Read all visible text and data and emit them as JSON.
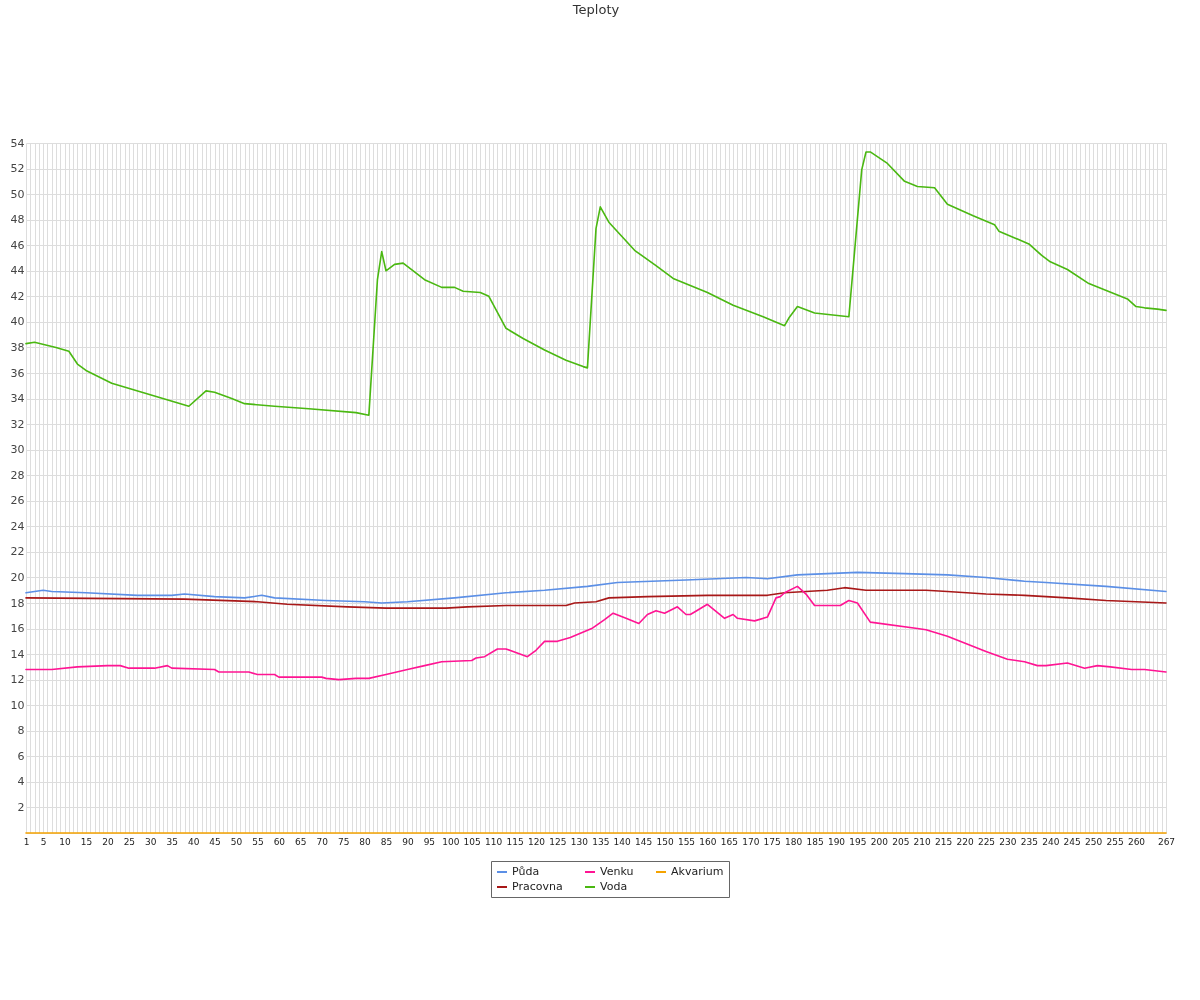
{
  "chart_data": {
    "type": "line",
    "title": "Teploty",
    "xlim": [
      1,
      267
    ],
    "xticks": [
      1,
      {
        "value": 2,
        "label": null
      },
      {
        "value": 3,
        "label": null
      },
      {
        "value": 4,
        "label": null
      },
      5,
      {
        "value": 6,
        "label": null
      },
      {
        "value": 7,
        "label": null
      },
      {
        "value": 8,
        "label": null
      },
      {
        "value": 9,
        "label": null
      },
      10,
      {
        "value": 11,
        "label": null
      },
      {
        "value": 12,
        "label": null
      },
      {
        "value": 13,
        "label": null
      },
      {
        "value": 14,
        "label": null
      },
      15,
      {
        "value": 16,
        "label": null
      },
      {
        "value": 17,
        "label": null
      },
      {
        "value": 18,
        "label": null
      },
      {
        "value": 19,
        "label": null
      },
      20,
      {
        "value": 21,
        "label": null
      },
      {
        "value": 22,
        "label": null
      },
      {
        "value": 23,
        "label": null
      },
      {
        "value": 24,
        "label": null
      },
      25,
      {
        "value": 26,
        "label": null
      },
      {
        "value": 27,
        "label": null
      },
      {
        "value": 28,
        "label": null
      },
      {
        "value": 29,
        "label": null
      },
      30,
      {
        "value": 31,
        "label": null
      },
      {
        "value": 32,
        "label": null
      },
      {
        "value": 33,
        "label": null
      },
      {
        "value": 34,
        "label": null
      },
      35,
      {
        "value": 36,
        "label": null
      },
      {
        "value": 37,
        "label": null
      },
      {
        "value": 38,
        "label": null
      },
      {
        "value": 39,
        "label": null
      },
      40,
      {
        "value": 41,
        "label": null
      },
      {
        "value": 42,
        "label": null
      },
      {
        "value": 43,
        "label": null
      },
      {
        "value": 44,
        "label": null
      },
      45,
      {
        "value": 46,
        "label": null
      },
      {
        "value": 47,
        "label": null
      },
      {
        "value": 48,
        "label": null
      },
      {
        "value": 49,
        "label": null
      },
      50,
      {
        "value": 51,
        "label": null
      },
      {
        "value": 52,
        "label": null
      },
      {
        "value": 53,
        "label": null
      },
      {
        "value": 54,
        "label": null
      },
      55,
      {
        "value": 56,
        "label": null
      },
      {
        "value": 57,
        "label": null
      },
      {
        "value": 58,
        "label": null
      },
      {
        "value": 59,
        "label": null
      },
      60,
      {
        "value": 61,
        "label": null
      },
      {
        "value": 62,
        "label": null
      },
      {
        "value": 63,
        "label": null
      },
      {
        "value": 64,
        "label": null
      },
      65,
      {
        "value": 66,
        "label": null
      },
      {
        "value": 67,
        "label": null
      },
      {
        "value": 68,
        "label": null
      },
      {
        "value": 69,
        "label": null
      },
      70,
      {
        "value": 71,
        "label": null
      },
      {
        "value": 72,
        "label": null
      },
      {
        "value": 73,
        "label": null
      },
      {
        "value": 74,
        "label": null
      },
      75,
      {
        "value": 76,
        "label": null
      },
      {
        "value": 77,
        "label": null
      },
      {
        "value": 78,
        "label": null
      },
      {
        "value": 79,
        "label": null
      },
      80,
      {
        "value": 81,
        "label": null
      },
      {
        "value": 82,
        "label": null
      },
      {
        "value": 83,
        "label": null
      },
      {
        "value": 84,
        "label": null
      },
      85,
      {
        "value": 86,
        "label": null
      },
      {
        "value": 87,
        "label": null
      },
      {
        "value": 88,
        "label": null
      },
      {
        "value": 89,
        "label": null
      },
      90,
      {
        "value": 91,
        "label": null
      },
      {
        "value": 92,
        "label": null
      },
      {
        "value": 93,
        "label": null
      },
      {
        "value": 94,
        "label": null
      },
      95,
      {
        "value": 96,
        "label": null
      },
      {
        "value": 97,
        "label": null
      },
      {
        "value": 98,
        "label": null
      },
      {
        "value": 99,
        "label": null
      },
      100,
      {
        "value": 101,
        "label": null
      },
      {
        "value": 102,
        "label": null
      },
      {
        "value": 103,
        "label": null
      },
      {
        "value": 104,
        "label": null
      },
      105,
      {
        "value": 106,
        "label": null
      },
      {
        "value": 107,
        "label": null
      },
      {
        "value": 108,
        "label": null
      },
      {
        "value": 109,
        "label": null
      },
      110,
      {
        "value": 111,
        "label": null
      },
      {
        "value": 112,
        "label": null
      },
      {
        "value": 113,
        "label": null
      },
      {
        "value": 114,
        "label": null
      },
      115,
      {
        "value": 116,
        "label": null
      },
      {
        "value": 117,
        "label": null
      },
      {
        "value": 118,
        "label": null
      },
      {
        "value": 119,
        "label": null
      },
      120,
      {
        "value": 121,
        "label": null
      },
      {
        "value": 122,
        "label": null
      },
      {
        "value": 123,
        "label": null
      },
      {
        "value": 124,
        "label": null
      },
      125,
      {
        "value": 126,
        "label": null
      },
      {
        "value": 127,
        "label": null
      },
      {
        "value": 128,
        "label": null
      },
      {
        "value": 129,
        "label": null
      },
      130,
      {
        "value": 131,
        "label": null
      },
      {
        "value": 132,
        "label": null
      },
      {
        "value": 133,
        "label": null
      },
      {
        "value": 134,
        "label": null
      },
      135,
      {
        "value": 136,
        "label": null
      },
      {
        "value": 137,
        "label": null
      },
      {
        "value": 138,
        "label": null
      },
      {
        "value": 139,
        "label": null
      },
      140,
      {
        "value": 141,
        "label": null
      },
      {
        "value": 142,
        "label": null
      },
      {
        "value": 143,
        "label": null
      },
      {
        "value": 144,
        "label": null
      },
      145,
      {
        "value": 146,
        "label": null
      },
      {
        "value": 147,
        "label": null
      },
      {
        "value": 148,
        "label": null
      },
      {
        "value": 149,
        "label": null
      },
      150,
      {
        "value": 151,
        "label": null
      },
      {
        "value": 152,
        "label": null
      },
      {
        "value": 153,
        "label": null
      },
      {
        "value": 154,
        "label": null
      },
      155,
      {
        "value": 156,
        "label": null
      },
      {
        "value": 157,
        "label": null
      },
      {
        "value": 158,
        "label": null
      },
      {
        "value": 159,
        "label": null
      },
      160,
      {
        "value": 161,
        "label": null
      },
      {
        "value": 162,
        "label": null
      },
      {
        "value": 163,
        "label": null
      },
      {
        "value": 164,
        "label": null
      },
      165,
      {
        "value": 166,
        "label": null
      },
      {
        "value": 167,
        "label": null
      },
      {
        "value": 168,
        "label": null
      },
      {
        "value": 169,
        "label": null
      },
      170,
      {
        "value": 171,
        "label": null
      },
      {
        "value": 172,
        "label": null
      },
      {
        "value": 173,
        "label": null
      },
      {
        "value": 174,
        "label": null
      },
      175,
      {
        "value": 176,
        "label": null
      },
      {
        "value": 177,
        "label": null
      },
      {
        "value": 178,
        "label": null
      },
      {
        "value": 179,
        "label": null
      },
      180,
      {
        "value": 181,
        "label": null
      },
      {
        "value": 182,
        "label": null
      },
      {
        "value": 183,
        "label": null
      },
      {
        "value": 184,
        "label": null
      },
      185,
      {
        "value": 186,
        "label": null
      },
      {
        "value": 187,
        "label": null
      },
      {
        "value": 188,
        "label": null
      },
      {
        "value": 189,
        "label": null
      },
      190,
      {
        "value": 191,
        "label": null
      },
      {
        "value": 192,
        "label": null
      },
      {
        "value": 193,
        "label": null
      },
      {
        "value": 194,
        "label": null
      },
      195,
      {
        "value": 196,
        "label": null
      },
      {
        "value": 197,
        "label": null
      },
      {
        "value": 198,
        "label": null
      },
      {
        "value": 199,
        "label": null
      },
      200,
      {
        "value": 201,
        "label": null
      },
      {
        "value": 202,
        "label": null
      },
      {
        "value": 203,
        "label": null
      },
      {
        "value": 204,
        "label": null
      },
      205,
      {
        "value": 206,
        "label": null
      },
      {
        "value": 207,
        "label": null
      },
      {
        "value": 208,
        "label": null
      },
      {
        "value": 209,
        "label": null
      },
      210,
      {
        "value": 211,
        "label": null
      },
      {
        "value": 212,
        "label": null
      },
      {
        "value": 213,
        "label": null
      },
      {
        "value": 214,
        "label": null
      },
      215,
      {
        "value": 216,
        "label": null
      },
      {
        "value": 217,
        "label": null
      },
      {
        "value": 218,
        "label": null
      },
      {
        "value": 219,
        "label": null
      },
      220,
      {
        "value": 221,
        "label": null
      },
      {
        "value": 222,
        "label": null
      },
      {
        "value": 223,
        "label": null
      },
      {
        "value": 224,
        "label": null
      },
      225,
      {
        "value": 226,
        "label": null
      },
      {
        "value": 227,
        "label": null
      },
      {
        "value": 228,
        "label": null
      },
      {
        "value": 229,
        "label": null
      },
      230,
      {
        "value": 231,
        "label": null
      },
      {
        "value": 232,
        "label": null
      },
      {
        "value": 233,
        "label": null
      },
      {
        "value": 234,
        "label": null
      },
      235,
      {
        "value": 236,
        "label": null
      },
      {
        "value": 237,
        "label": null
      },
      {
        "value": 238,
        "label": null
      },
      {
        "value": 239,
        "label": null
      },
      240,
      {
        "value": 241,
        "label": null
      },
      {
        "value": 242,
        "label": null
      },
      {
        "value": 243,
        "label": null
      },
      {
        "value": 244,
        "label": null
      },
      245,
      {
        "value": 246,
        "label": null
      },
      {
        "value": 247,
        "label": null
      },
      {
        "value": 248,
        "label": null
      },
      {
        "value": 249,
        "label": null
      },
      250,
      {
        "value": 251,
        "label": null
      },
      {
        "value": 252,
        "label": null
      },
      {
        "value": 253,
        "label": null
      },
      {
        "value": 254,
        "label": null
      },
      255,
      {
        "value": 256,
        "label": null
      },
      {
        "value": 257,
        "label": null
      },
      {
        "value": 258,
        "label": null
      },
      {
        "value": 259,
        "label": null
      },
      260,
      {
        "value": 261,
        "label": null
      },
      {
        "value": 262,
        "label": null
      },
      {
        "value": 263,
        "label": null
      },
      {
        "value": 264,
        "label": null
      },
      {
        "value": 265,
        "label": null
      },
      {
        "value": 266,
        "label": null
      },
      267
    ],
    "ylim": [
      0,
      54
    ],
    "yticks": [
      {
        "value": 0,
        "label": null
      },
      2,
      4,
      6,
      8,
      10,
      12,
      14,
      16,
      18,
      20,
      22,
      24,
      26,
      28,
      30,
      32,
      34,
      36,
      38,
      40,
      42,
      44,
      46,
      48,
      50,
      52,
      54
    ],
    "grid": true,
    "legend": "bottom",
    "series": [
      {
        "name": "Půda",
        "color": "#5b8fe6",
        "x": [
          1,
          5,
          7,
          15,
          27,
          35,
          38,
          45,
          52,
          56,
          59,
          71,
          80,
          84,
          90,
          101,
          113,
          122,
          132,
          139,
          155,
          169,
          174,
          181,
          195,
          206,
          216,
          225,
          234,
          239,
          253,
          267
        ],
        "values": [
          18.8,
          19.0,
          18.9,
          18.8,
          18.6,
          18.6,
          18.7,
          18.5,
          18.4,
          18.6,
          18.4,
          18.2,
          18.1,
          18.0,
          18.1,
          18.4,
          18.8,
          19.0,
          19.3,
          19.6,
          19.8,
          20.0,
          19.9,
          20.2,
          20.4,
          20.3,
          20.2,
          20.0,
          19.7,
          19.6,
          19.3,
          18.9
        ]
      },
      {
        "name": "Pracovna",
        "color": "#a81818",
        "x": [
          1,
          38,
          55,
          62,
          76,
          85,
          99,
          104,
          113,
          127,
          129,
          134,
          137,
          146,
          160,
          174,
          178,
          183,
          188,
          192,
          197,
          211,
          216,
          225,
          234,
          244,
          253,
          267
        ],
        "values": [
          18.4,
          18.3,
          18.1,
          17.9,
          17.7,
          17.6,
          17.6,
          17.7,
          17.8,
          17.8,
          18.0,
          18.1,
          18.4,
          18.5,
          18.6,
          18.6,
          18.8,
          18.9,
          19.0,
          19.2,
          19.0,
          19.0,
          18.9,
          18.7,
          18.6,
          18.4,
          18.2,
          18.0
        ]
      },
      {
        "name": "Venku",
        "color": "#ff1493",
        "x": [
          1,
          7,
          13,
          20,
          23,
          25,
          31,
          34,
          35,
          45,
          46,
          53,
          55,
          59,
          60,
          70,
          71,
          74,
          78,
          81,
          85,
          90,
          94,
          98,
          105,
          106,
          108,
          111,
          113,
          118,
          120,
          122,
          125,
          128,
          133,
          136,
          138,
          141,
          144,
          146,
          148,
          150,
          153,
          155,
          156,
          157,
          160,
          164,
          166,
          167,
          171,
          174,
          176,
          177,
          178,
          181,
          183,
          185,
          187,
          191,
          193,
          195,
          198,
          209,
          211,
          216,
          225,
          230,
          234,
          237,
          239,
          244,
          248,
          251,
          254,
          259,
          262,
          267
        ],
        "values": [
          12.8,
          12.8,
          13.0,
          13.1,
          13.1,
          12.9,
          12.9,
          13.1,
          12.9,
          12.8,
          12.6,
          12.6,
          12.4,
          12.4,
          12.2,
          12.2,
          12.1,
          12.0,
          12.1,
          12.1,
          12.4,
          12.8,
          13.1,
          13.4,
          13.5,
          13.7,
          13.8,
          14.4,
          14.4,
          13.8,
          14.3,
          15.0,
          15.0,
          15.3,
          16.0,
          16.7,
          17.2,
          16.8,
          16.4,
          17.1,
          17.4,
          17.2,
          17.7,
          17.1,
          17.1,
          17.3,
          17.9,
          16.8,
          17.1,
          16.8,
          16.6,
          16.9,
          18.4,
          18.5,
          18.8,
          19.3,
          18.7,
          17.8,
          17.8,
          17.8,
          18.2,
          18.0,
          16.5,
          16.0,
          15.9,
          15.4,
          14.2,
          13.6,
          13.4,
          13.1,
          13.1,
          13.3,
          12.9,
          13.1,
          13.0,
          12.8,
          12.8,
          12.6
        ]
      },
      {
        "name": "Voda",
        "color": "#4ab811",
        "x": [
          1,
          3,
          8,
          11,
          13,
          15,
          21,
          30,
          39,
          43,
          45,
          49,
          52,
          59,
          67,
          78,
          81,
          83,
          84,
          85,
          87,
          89,
          94,
          98,
          101,
          103,
          107,
          109,
          113,
          117,
          122,
          127,
          131,
          132,
          134,
          135,
          137,
          140,
          143,
          148,
          152,
          160,
          166,
          173,
          178,
          179,
          181,
          185,
          193,
          196,
          197,
          198,
          202,
          206,
          209,
          213,
          216,
          222,
          227,
          228,
          235,
          238,
          240,
          244,
          249,
          258,
          260,
          262,
          265,
          267
        ],
        "values": [
          38.3,
          38.4,
          38.0,
          37.7,
          36.7,
          36.2,
          35.2,
          34.3,
          33.4,
          34.6,
          34.5,
          34.0,
          33.6,
          33.4,
          33.2,
          32.9,
          32.7,
          43.3,
          45.5,
          44.0,
          44.5,
          44.6,
          43.3,
          42.7,
          42.7,
          42.4,
          42.3,
          42.0,
          39.5,
          38.7,
          37.8,
          37.0,
          36.5,
          36.4,
          47.3,
          49.0,
          47.8,
          46.7,
          45.6,
          44.4,
          43.4,
          42.3,
          41.3,
          40.4,
          39.7,
          40.3,
          41.2,
          40.7,
          40.4,
          51.9,
          53.3,
          53.3,
          52.4,
          51.0,
          50.6,
          50.5,
          49.2,
          48.3,
          47.6,
          47.1,
          46.1,
          45.2,
          44.7,
          44.1,
          43.0,
          41.8,
          41.2,
          41.1,
          41.0,
          40.9
        ]
      },
      {
        "name": "Akvarium",
        "color": "#f5a300",
        "x": [
          1,
          267
        ],
        "values": [
          0,
          0
        ]
      }
    ]
  }
}
